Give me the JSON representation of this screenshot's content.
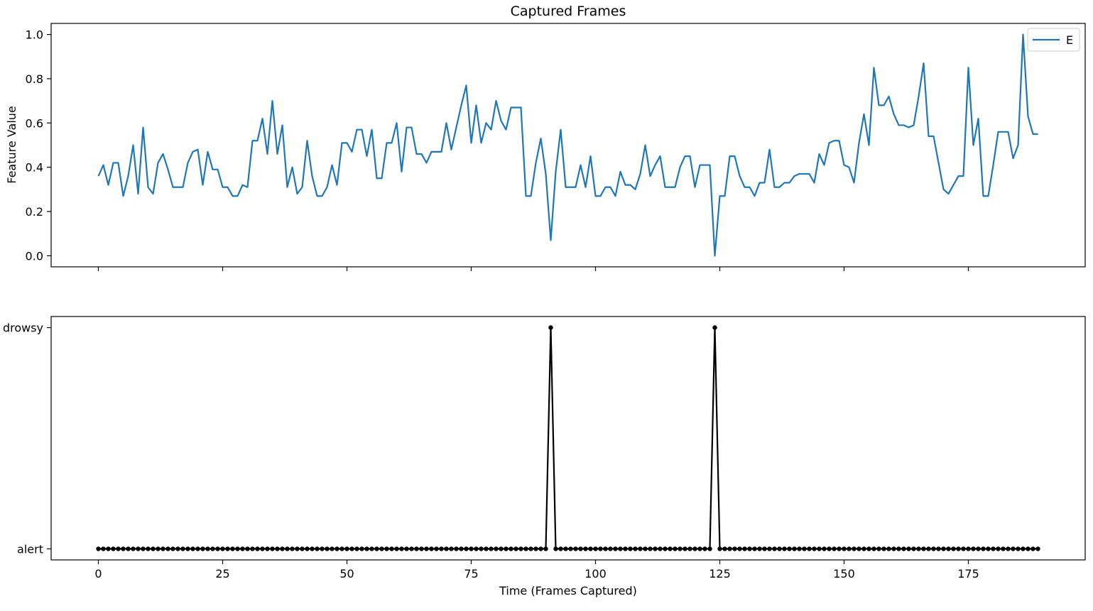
{
  "chart_data": [
    {
      "type": "line",
      "title": "Captured Frames",
      "ylabel": "Feature Value",
      "xlim": [
        -9.5,
        198.5
      ],
      "ylim": [
        -0.05,
        1.05
      ],
      "xticks": [
        0,
        25,
        50,
        75,
        100,
        125,
        150,
        175
      ],
      "yticks": [
        0.0,
        0.2,
        0.4,
        0.6,
        0.8,
        1.0
      ],
      "ytick_labels": [
        "0.0",
        "0.2",
        "0.4",
        "0.6",
        "0.8",
        "1.0"
      ],
      "legend": {
        "position": "top-right",
        "entries": [
          "E"
        ]
      },
      "grid": false,
      "series": [
        {
          "name": "E",
          "color": "#1f77b4",
          "values": [
            0.36,
            0.41,
            0.32,
            0.42,
            0.42,
            0.27,
            0.36,
            0.5,
            0.28,
            0.58,
            0.31,
            0.28,
            0.42,
            0.46,
            0.39,
            0.31,
            0.31,
            0.31,
            0.42,
            0.47,
            0.48,
            0.32,
            0.47,
            0.39,
            0.39,
            0.31,
            0.31,
            0.27,
            0.27,
            0.32,
            0.31,
            0.52,
            0.52,
            0.62,
            0.46,
            0.7,
            0.46,
            0.59,
            0.31,
            0.4,
            0.28,
            0.31,
            0.52,
            0.36,
            0.27,
            0.27,
            0.31,
            0.41,
            0.32,
            0.51,
            0.51,
            0.47,
            0.57,
            0.57,
            0.45,
            0.57,
            0.35,
            0.35,
            0.51,
            0.51,
            0.6,
            0.38,
            0.58,
            0.58,
            0.46,
            0.46,
            0.42,
            0.47,
            0.47,
            0.47,
            0.6,
            0.48,
            0.58,
            0.68,
            0.77,
            0.51,
            0.68,
            0.51,
            0.6,
            0.57,
            0.7,
            0.61,
            0.57,
            0.67,
            0.67,
            0.67,
            0.27,
            0.27,
            0.42,
            0.53,
            0.37,
            0.07,
            0.38,
            0.57,
            0.31,
            0.31,
            0.31,
            0.41,
            0.31,
            0.45,
            0.27,
            0.27,
            0.31,
            0.31,
            0.27,
            0.38,
            0.32,
            0.32,
            0.3,
            0.37,
            0.5,
            0.36,
            0.41,
            0.45,
            0.31,
            0.31,
            0.31,
            0.4,
            0.45,
            0.45,
            0.31,
            0.41,
            0.41,
            0.41,
            0.0,
            0.27,
            0.27,
            0.45,
            0.45,
            0.36,
            0.31,
            0.31,
            0.27,
            0.33,
            0.33,
            0.48,
            0.31,
            0.31,
            0.33,
            0.33,
            0.36,
            0.37,
            0.37,
            0.37,
            0.33,
            0.46,
            0.41,
            0.51,
            0.52,
            0.52,
            0.41,
            0.4,
            0.33,
            0.51,
            0.64,
            0.5,
            0.85,
            0.68,
            0.68,
            0.72,
            0.64,
            0.59,
            0.59,
            0.58,
            0.59,
            0.72,
            0.87,
            0.54,
            0.54,
            0.42,
            0.3,
            0.28,
            0.32,
            0.36,
            0.36,
            0.85,
            0.5,
            0.62,
            0.27,
            0.27,
            0.41,
            0.56,
            0.56,
            0.56,
            0.44,
            0.5,
            1.0,
            0.63,
            0.55,
            0.55
          ]
        }
      ]
    },
    {
      "type": "line",
      "xlabel": "Time (Frames Captured)",
      "xlim": [
        -9.5,
        198.5
      ],
      "ylim": [
        -0.05,
        1.05
      ],
      "xticks": [
        0,
        25,
        50,
        75,
        100,
        125,
        150,
        175
      ],
      "xtick_labels": [
        "0",
        "25",
        "50",
        "75",
        "100",
        "125",
        "150",
        "175"
      ],
      "ytick_labels": [
        "alert",
        "drowsy"
      ],
      "grid": false,
      "series": [
        {
          "color": "#000000",
          "marker": "circle",
          "n_points": 190,
          "drowsy_frames": [
            91,
            124
          ]
        }
      ]
    }
  ]
}
